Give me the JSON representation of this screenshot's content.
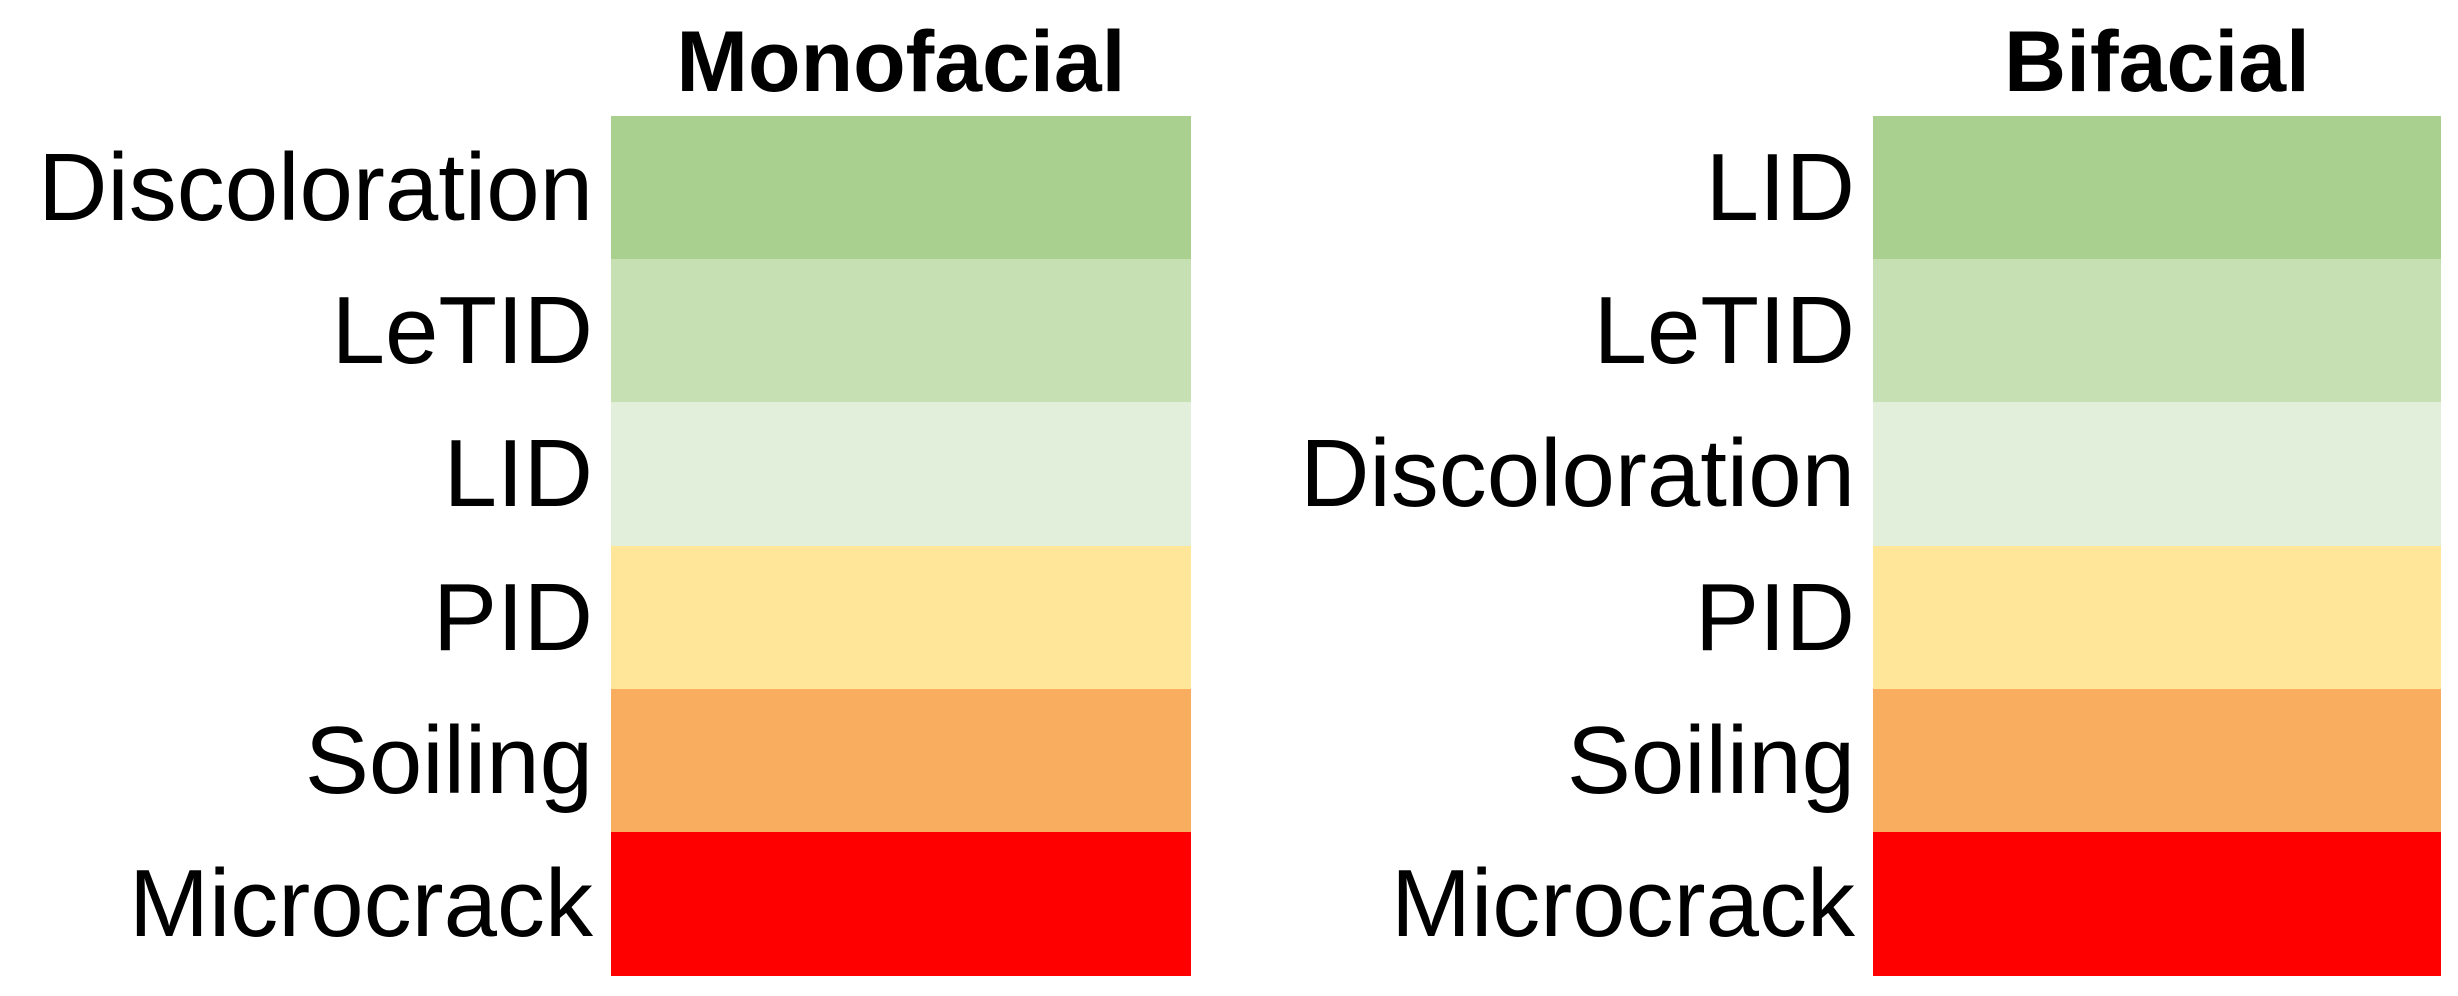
{
  "panels": [
    {
      "title": "Monofacial",
      "rows": [
        {
          "label": "Discoloration",
          "color": "#a9d08e"
        },
        {
          "label": "LeTID",
          "color": "#c6e0b4"
        },
        {
          "label": "LID",
          "color": "#e2efda"
        },
        {
          "label": "PID",
          "color": "#ffe699"
        },
        {
          "label": "Soiling",
          "color": "#f8ae5e"
        },
        {
          "label": "Microcrack",
          "color": "#ff0000"
        }
      ]
    },
    {
      "title": "Bifacial",
      "rows": [
        {
          "label": "LID",
          "color": "#a9d08e"
        },
        {
          "label": "LeTID",
          "color": "#c6e0b4"
        },
        {
          "label": "Discoloration",
          "color": "#e2efda"
        },
        {
          "label": "PID",
          "color": "#ffe699"
        },
        {
          "label": "Soiling",
          "color": "#f8ae5e"
        },
        {
          "label": "Microcrack",
          "color": "#ff0000"
        }
      ]
    }
  ]
}
